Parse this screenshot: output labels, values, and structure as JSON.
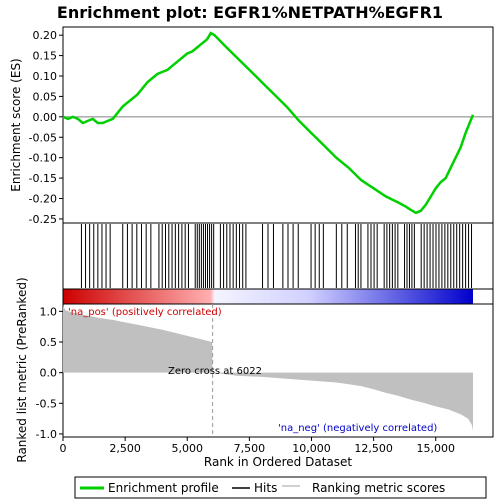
{
  "chart_data": {
    "type": "line",
    "title": "Enrichment plot: EGFR1%NETPATH%EGFR1",
    "es_panel": {
      "ylabel": "Enrichment score (ES)",
      "yticks": [
        0.2,
        0.15,
        0.1,
        0.05,
        0.0,
        -0.05,
        -0.1,
        -0.15,
        -0.2,
        -0.25
      ],
      "tick_labels": [
        "0.20",
        "0.15",
        "0.10",
        "0.05",
        "0.00",
        "-0.05",
        "-0.10",
        "-0.15",
        "-0.20",
        "-0.25"
      ],
      "ylim": [
        -0.26,
        0.22
      ],
      "series_name": "Enrichment profile",
      "color": "#00d000",
      "x": [
        0,
        200,
        400,
        600,
        800,
        1000,
        1200,
        1400,
        1600,
        1800,
        2000,
        2200,
        2400,
        2600,
        2800,
        3000,
        3200,
        3400,
        3600,
        3800,
        4000,
        4200,
        4400,
        4600,
        4800,
        5000,
        5200,
        5400,
        5600,
        5800,
        5950,
        6100,
        6500,
        7000,
        7500,
        8000,
        8500,
        9000,
        9500,
        10000,
        10500,
        11000,
        11500,
        12000,
        12500,
        13000,
        13500,
        13800,
        14000,
        14200,
        14400,
        14600,
        14800,
        15000,
        15200,
        15400,
        15600,
        15800,
        16000,
        16200,
        16400,
        16500
      ],
      "y": [
        0.0,
        -0.005,
        0.0,
        -0.005,
        -0.015,
        -0.01,
        -0.005,
        -0.015,
        -0.015,
        -0.01,
        -0.005,
        0.01,
        0.025,
        0.035,
        0.045,
        0.055,
        0.07,
        0.085,
        0.095,
        0.105,
        0.11,
        0.115,
        0.125,
        0.135,
        0.145,
        0.155,
        0.16,
        0.17,
        0.18,
        0.19,
        0.205,
        0.2,
        0.175,
        0.145,
        0.115,
        0.085,
        0.055,
        0.025,
        -0.01,
        -0.04,
        -0.07,
        -0.1,
        -0.125,
        -0.155,
        -0.175,
        -0.195,
        -0.21,
        -0.22,
        -0.228,
        -0.235,
        -0.23,
        -0.215,
        -0.195,
        -0.175,
        -0.16,
        -0.15,
        -0.125,
        -0.1,
        -0.075,
        -0.04,
        -0.01,
        0.005
      ]
    },
    "hits_panel": {
      "series_name": "Hits",
      "color": "#000000"
    },
    "metric_panel": {
      "ylabel": "Ranked list metric (PreRanked)",
      "xlabel": "Rank in Ordered Dataset",
      "yticks": [
        1.0,
        0.5,
        0.0,
        -0.5,
        -1.0
      ],
      "tick_labels": [
        "1.0",
        "0.5",
        "0.0",
        "-0.5",
        "-1.0"
      ],
      "ylim": [
        -1.05,
        1.12
      ],
      "series_name": "Ranking metric scores",
      "color": "#c0c0c0",
      "x": [
        0,
        100,
        300,
        600,
        1000,
        1500,
        2000,
        2500,
        3000,
        3500,
        4000,
        4500,
        5000,
        5500,
        6000,
        6022,
        7000,
        8000,
        9000,
        10000,
        11000,
        11500,
        12000,
        12500,
        13000,
        13500,
        14000,
        14500,
        15000,
        15500,
        16000,
        16300,
        16450,
        16500
      ],
      "y": [
        1.08,
        1.02,
        0.99,
        0.96,
        0.93,
        0.89,
        0.86,
        0.82,
        0.78,
        0.74,
        0.7,
        0.65,
        0.6,
        0.55,
        0.5,
        0.0,
        -0.05,
        -0.07,
        -0.1,
        -0.13,
        -0.16,
        -0.19,
        -0.22,
        -0.27,
        -0.33,
        -0.38,
        -0.44,
        -0.49,
        -0.55,
        -0.6,
        -0.68,
        -0.75,
        -0.85,
        -0.95
      ],
      "zero_cross_label": "Zero cross at 6022",
      "zero_cross_x": 6022,
      "pos_label": "'na_pos' (positively correlated)",
      "neg_label": "'na_neg' (negatively correlated)",
      "pos_color": "#cc0000",
      "neg_color": "#0000cc"
    },
    "xaxis": {
      "xlim": [
        0,
        16500
      ],
      "xticks": [
        0,
        2500,
        5000,
        7500,
        10000,
        12500,
        15000
      ],
      "tick_labels": [
        "0",
        "2,500",
        "5,000",
        "7,500",
        "10,000",
        "12,500",
        "15,000"
      ]
    },
    "legend": {
      "placement": "bottom",
      "entries": [
        "Enrichment profile",
        "Hits",
        "Ranking metric scores"
      ]
    }
  }
}
